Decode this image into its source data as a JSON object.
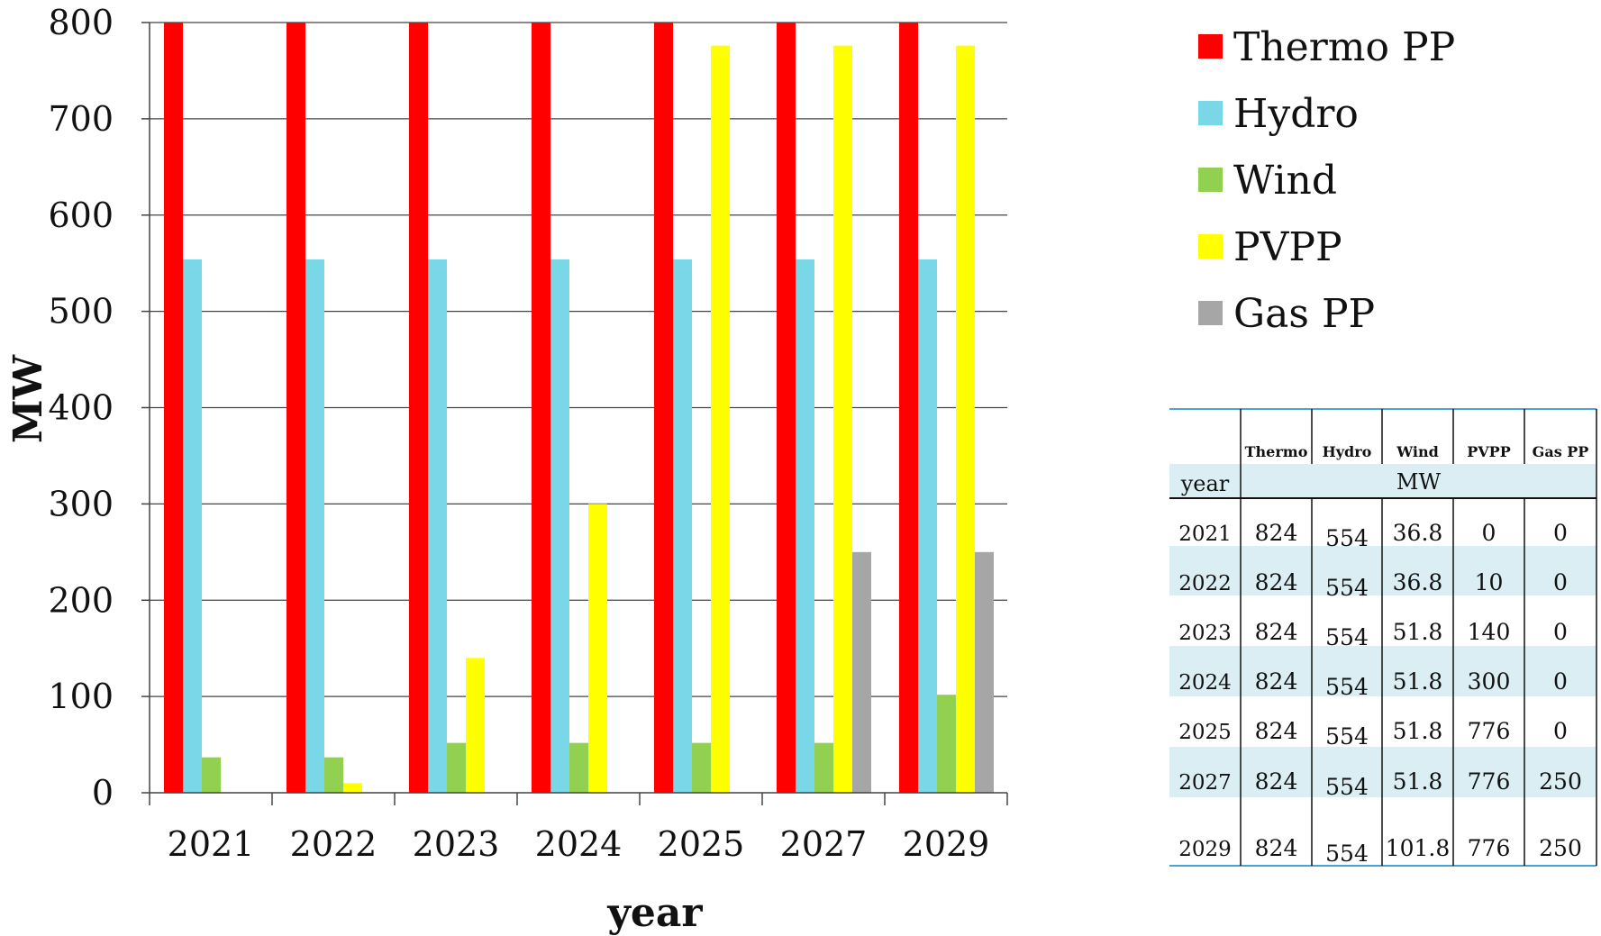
{
  "chart_data": {
    "type": "bar",
    "xlabel": "year",
    "ylabel": "MW",
    "ylim": [
      0,
      800
    ],
    "yticks": [
      0,
      100,
      200,
      300,
      400,
      500,
      600,
      700,
      800
    ],
    "grid": true,
    "legend_position": "right-top",
    "categories": [
      "2021",
      "2022",
      "2023",
      "2024",
      "2025",
      "2027",
      "2029"
    ],
    "series": [
      {
        "name": "Thermo PP",
        "color": "#ff0000",
        "values": [
          824,
          824,
          824,
          824,
          824,
          824,
          824
        ]
      },
      {
        "name": "Hydro",
        "color": "#79d7e8",
        "values": [
          554,
          554,
          554,
          554,
          554,
          554,
          554
        ]
      },
      {
        "name": "Wind",
        "color": "#92d050",
        "values": [
          36.8,
          36.8,
          51.8,
          51.8,
          51.8,
          51.8,
          101.8
        ]
      },
      {
        "name": "PVPP",
        "color": "#ffff00",
        "values": [
          0,
          10,
          140,
          300,
          776,
          776,
          776
        ]
      },
      {
        "name": "Gas PP",
        "color": "#a6a6a6",
        "values": [
          0,
          0,
          0,
          0,
          0,
          250,
          250
        ]
      }
    ]
  },
  "table": {
    "header_blank": "",
    "columns": [
      "Thermo",
      "Hydro",
      "Wind",
      "PVPP",
      "Gas PP"
    ],
    "year_label": "year",
    "unit_label": "MW",
    "rows": [
      {
        "year": "2021",
        "values": [
          "824",
          "554",
          "36.8",
          "0",
          "0"
        ]
      },
      {
        "year": "2022",
        "values": [
          "824",
          "554",
          "36.8",
          "10",
          "0"
        ]
      },
      {
        "year": "2023",
        "values": [
          "824",
          "554",
          "51.8",
          "140",
          "0"
        ]
      },
      {
        "year": "2024",
        "values": [
          "824",
          "554",
          "51.8",
          "300",
          "0"
        ]
      },
      {
        "year": "2025",
        "values": [
          "824",
          "554",
          "51.8",
          "776",
          "0"
        ]
      },
      {
        "year": "2027",
        "values": [
          "824",
          "554",
          "51.8",
          "776",
          "250"
        ]
      },
      {
        "year": "2029",
        "values": [
          "824",
          "554",
          "101.8",
          "776",
          "250"
        ]
      }
    ],
    "colors": {
      "band": "#daeef3",
      "rule": "#4aa3d8",
      "grid": "#111111"
    }
  }
}
